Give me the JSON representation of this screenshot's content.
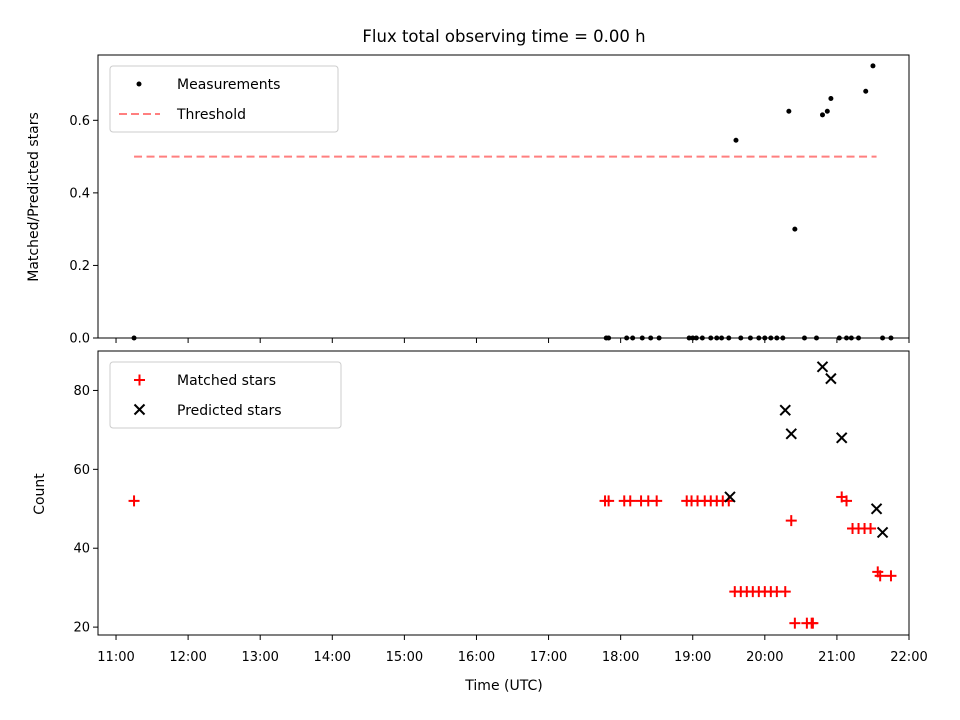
{
  "chart_data": [
    {
      "type": "scatter",
      "title": "Flux total observing time = 0.00 h",
      "xlabel": "",
      "ylabel": "Matched/Predicted stars",
      "xlim": [
        "10:45",
        "22:00"
      ],
      "ylim": [
        0,
        0.78
      ],
      "yticks": [
        0.0,
        0.2,
        0.4,
        0.6
      ],
      "ytick_labels": [
        "0.0",
        "0.2",
        "0.4",
        "0.6"
      ],
      "legend_position": "upper left",
      "series": [
        {
          "name": "Measurements",
          "kind": "scatter",
          "marker": "dot",
          "color": "#000000",
          "x": [
            "11:15",
            "17:48",
            "17:50",
            "18:05",
            "18:10",
            "18:18",
            "18:25",
            "18:32",
            "18:57",
            "19:00",
            "19:03",
            "19:08",
            "19:15",
            "19:20",
            "19:24",
            "19:30",
            "19:36",
            "19:40",
            "19:48",
            "19:55",
            "20:00",
            "20:05",
            "20:10",
            "20:15",
            "20:20",
            "20:25",
            "20:33",
            "20:43",
            "20:48",
            "20:52",
            "20:55",
            "21:02",
            "21:08",
            "21:12",
            "21:18",
            "21:24",
            "21:30",
            "21:38",
            "21:45"
          ],
          "y": [
            0,
            0,
            0,
            0,
            0,
            0,
            0,
            0,
            0,
            0,
            0,
            0,
            0,
            0,
            0,
            0,
            0.545,
            0,
            0,
            0,
            0,
            0,
            0,
            0,
            0.625,
            0.3,
            0,
            0,
            0.615,
            0.625,
            0.66,
            0,
            0,
            0,
            0,
            0.68,
            0.75,
            0,
            0
          ]
        },
        {
          "name": "Threshold",
          "kind": "line",
          "dash": "dashed",
          "color": "#ff7f7f",
          "x": [
            "11:15",
            "21:33"
          ],
          "y": [
            0.5,
            0.5
          ]
        }
      ]
    },
    {
      "type": "scatter",
      "title": "",
      "xlabel": "Time (UTC)",
      "ylabel": "Count",
      "xlim": [
        "10:45",
        "22:00"
      ],
      "xticks": [
        "11:00",
        "12:00",
        "13:00",
        "14:00",
        "15:00",
        "16:00",
        "17:00",
        "18:00",
        "19:00",
        "20:00",
        "21:00",
        "22:00"
      ],
      "ylim": [
        18,
        90
      ],
      "yticks": [
        20,
        40,
        60,
        80
      ],
      "ytick_labels": [
        "20",
        "40",
        "60",
        "80"
      ],
      "legend_position": "upper left",
      "series": [
        {
          "name": "Matched stars",
          "kind": "scatter",
          "marker": "plus",
          "color": "#ff0000",
          "x": [
            "11:15",
            "17:47",
            "17:50",
            "18:03",
            "18:08",
            "18:17",
            "18:23",
            "18:30",
            "18:55",
            "18:59",
            "19:04",
            "19:10",
            "19:15",
            "19:20",
            "19:25",
            "19:30",
            "19:35",
            "19:40",
            "19:45",
            "19:50",
            "19:55",
            "20:00",
            "20:05",
            "20:10",
            "20:17",
            "20:22",
            "20:25",
            "20:35",
            "20:39",
            "20:40",
            "21:04",
            "21:08",
            "21:13",
            "21:18",
            "21:23",
            "21:28",
            "21:34",
            "21:36",
            "21:45"
          ],
          "y": [
            52,
            52,
            52,
            52,
            52,
            52,
            52,
            52,
            52,
            52,
            52,
            52,
            52,
            52,
            52,
            52,
            29,
            29,
            29,
            29,
            29,
            29,
            29,
            29,
            29,
            47,
            21,
            21,
            21,
            21,
            53,
            52,
            45,
            45,
            45,
            45,
            34,
            33,
            33
          ]
        },
        {
          "name": "Predicted stars",
          "kind": "scatter",
          "marker": "x",
          "color": "#000000",
          "x": [
            "19:31",
            "20:17",
            "20:22",
            "20:48",
            "20:55",
            "21:04",
            "21:33",
            "21:38"
          ],
          "y": [
            53,
            75,
            69,
            86,
            83,
            68,
            50,
            44
          ]
        }
      ]
    }
  ]
}
